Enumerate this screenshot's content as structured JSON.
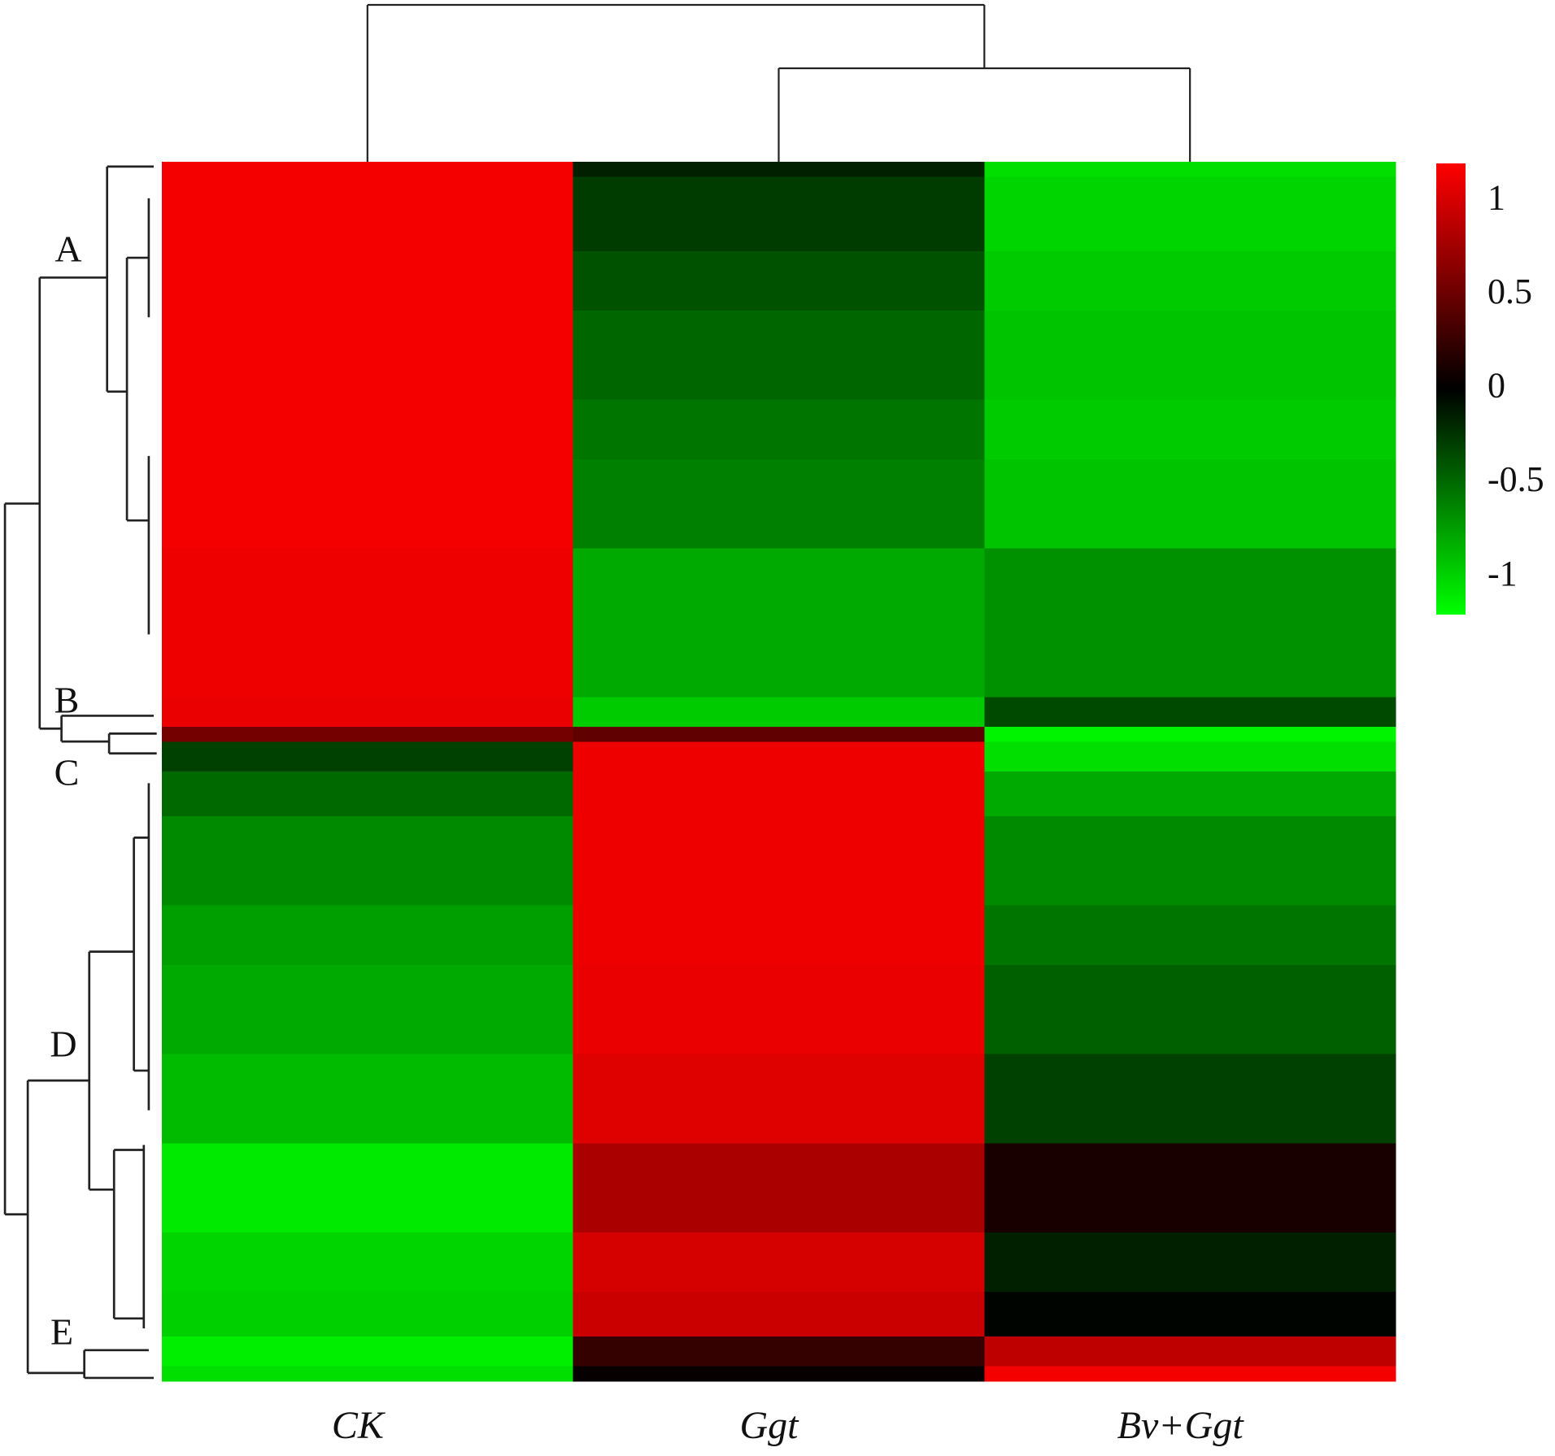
{
  "chart_data": {
    "type": "heatmap",
    "columns": [
      "CK",
      "Ggt",
      "Bv+Ggt"
    ],
    "cluster_labels": [
      "A",
      "B",
      "C",
      "D",
      "E"
    ],
    "colors": [
      "#00ff00",
      "#000000",
      "#ff0000"
    ],
    "clim": [
      -1.2,
      1.2
    ],
    "cticks": [
      1,
      0.5,
      0,
      -0.5,
      -1
    ],
    "values": [
      [
        1.15,
        -0.15,
        -1.05
      ],
      [
        1.15,
        -0.28,
        -1.0
      ],
      [
        1.15,
        -0.28,
        -1.0
      ],
      [
        1.15,
        -0.28,
        -1.0
      ],
      [
        1.15,
        -0.28,
        -1.0
      ],
      [
        1.15,
        -0.28,
        -1.0
      ],
      [
        1.15,
        -0.38,
        -0.95
      ],
      [
        1.15,
        -0.38,
        -0.95
      ],
      [
        1.15,
        -0.38,
        -0.95
      ],
      [
        1.15,
        -0.38,
        -0.95
      ],
      [
        1.15,
        -0.48,
        -0.92
      ],
      [
        1.15,
        -0.48,
        -0.92
      ],
      [
        1.15,
        -0.48,
        -0.92
      ],
      [
        1.15,
        -0.48,
        -0.92
      ],
      [
        1.15,
        -0.48,
        -0.92
      ],
      [
        1.15,
        -0.48,
        -0.92
      ],
      [
        1.15,
        -0.55,
        -0.95
      ],
      [
        1.15,
        -0.55,
        -0.95
      ],
      [
        1.15,
        -0.55,
        -0.95
      ],
      [
        1.15,
        -0.55,
        -0.95
      ],
      [
        1.15,
        -0.6,
        -0.92
      ],
      [
        1.15,
        -0.6,
        -0.92
      ],
      [
        1.15,
        -0.6,
        -0.92
      ],
      [
        1.15,
        -0.6,
        -0.92
      ],
      [
        1.15,
        -0.6,
        -0.92
      ],
      [
        1.15,
        -0.6,
        -0.92
      ],
      [
        1.12,
        -0.8,
        -0.68
      ],
      [
        1.12,
        -0.8,
        -0.68
      ],
      [
        1.12,
        -0.8,
        -0.68
      ],
      [
        1.12,
        -0.8,
        -0.68
      ],
      [
        1.12,
        -0.8,
        -0.68
      ],
      [
        1.12,
        -0.8,
        -0.68
      ],
      [
        1.12,
        -0.8,
        -0.68
      ],
      [
        1.12,
        -0.8,
        -0.68
      ],
      [
        1.12,
        -0.8,
        -0.68
      ],
      [
        1.12,
        -0.8,
        -0.68
      ],
      [
        1.1,
        -0.95,
        -0.35
      ],
      [
        1.1,
        -0.95,
        -0.35
      ],
      [
        0.55,
        0.45,
        -1.15
      ],
      [
        -0.3,
        1.12,
        -1.05
      ],
      [
        -0.3,
        1.12,
        -1.05
      ],
      [
        -0.5,
        1.12,
        -0.8
      ],
      [
        -0.5,
        1.12,
        -0.8
      ],
      [
        -0.5,
        1.12,
        -0.8
      ],
      [
        -0.65,
        1.12,
        -0.65
      ],
      [
        -0.65,
        1.12,
        -0.65
      ],
      [
        -0.65,
        1.12,
        -0.65
      ],
      [
        -0.65,
        1.12,
        -0.65
      ],
      [
        -0.65,
        1.12,
        -0.65
      ],
      [
        -0.65,
        1.12,
        -0.65
      ],
      [
        -0.75,
        1.12,
        -0.55
      ],
      [
        -0.75,
        1.12,
        -0.55
      ],
      [
        -0.75,
        1.12,
        -0.55
      ],
      [
        -0.75,
        1.12,
        -0.55
      ],
      [
        -0.8,
        1.1,
        -0.45
      ],
      [
        -0.8,
        1.1,
        -0.45
      ],
      [
        -0.8,
        1.1,
        -0.45
      ],
      [
        -0.8,
        1.1,
        -0.45
      ],
      [
        -0.8,
        1.1,
        -0.45
      ],
      [
        -0.8,
        1.1,
        -0.45
      ],
      [
        -0.88,
        1.05,
        -0.3
      ],
      [
        -0.88,
        1.05,
        -0.3
      ],
      [
        -0.88,
        1.05,
        -0.3
      ],
      [
        -0.88,
        1.05,
        -0.3
      ],
      [
        -0.88,
        1.05,
        -0.3
      ],
      [
        -0.88,
        1.05,
        -0.3
      ],
      [
        -1.1,
        0.8,
        0.12
      ],
      [
        -1.1,
        0.8,
        0.12
      ],
      [
        -1.1,
        0.8,
        0.12
      ],
      [
        -1.1,
        0.8,
        0.12
      ],
      [
        -1.1,
        0.8,
        0.12
      ],
      [
        -1.1,
        0.8,
        0.12
      ],
      [
        -1.0,
        1.0,
        -0.15
      ],
      [
        -1.0,
        1.0,
        -0.15
      ],
      [
        -1.0,
        1.0,
        -0.15
      ],
      [
        -1.0,
        1.0,
        -0.15
      ],
      [
        -0.98,
        0.95,
        -0.02
      ],
      [
        -0.98,
        0.95,
        -0.02
      ],
      [
        -0.98,
        0.95,
        -0.02
      ],
      [
        -1.12,
        0.25,
        0.9
      ],
      [
        -1.12,
        0.25,
        0.9
      ],
      [
        -1.05,
        0.03,
        1.15
      ]
    ]
  }
}
